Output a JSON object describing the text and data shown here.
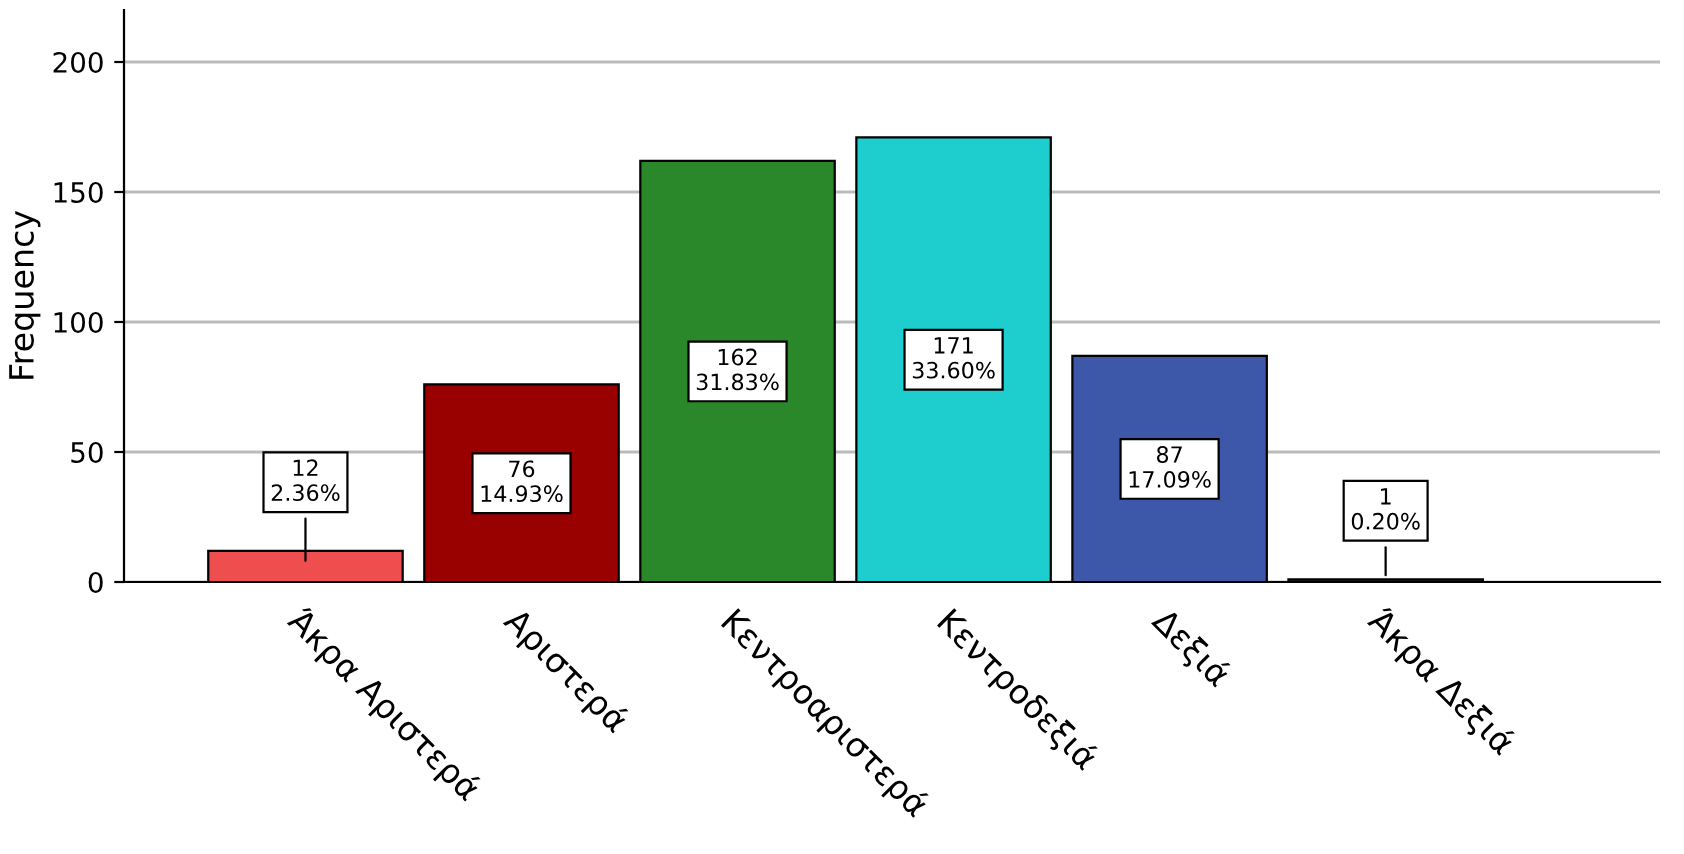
{
  "chart_data": {
    "type": "bar",
    "ylabel": "Frequency",
    "categories": [
      "Άκρα Αριστερά",
      "Αριστερά",
      "Κεντροαριστερά",
      "Κεντροδεξιά",
      "Δεξιά",
      "Άκρα Δεξιά"
    ],
    "values": [
      12,
      76,
      162,
      171,
      87,
      1
    ],
    "colors": [
      "#ef4e4e",
      "#990000",
      "#2a882a",
      "#1ecece",
      "#3d58a8",
      "#222222"
    ],
    "value_labels": [
      "12\n2.36%",
      "76\n14.93%",
      "162\n31.83%",
      "171\n33.60%",
      "87\n17.09%",
      "1\n0.20%"
    ],
    "ylim": [
      0,
      220
    ],
    "yticks": [
      0,
      50,
      100,
      150,
      200
    ],
    "grid": "y",
    "legend": false
  }
}
